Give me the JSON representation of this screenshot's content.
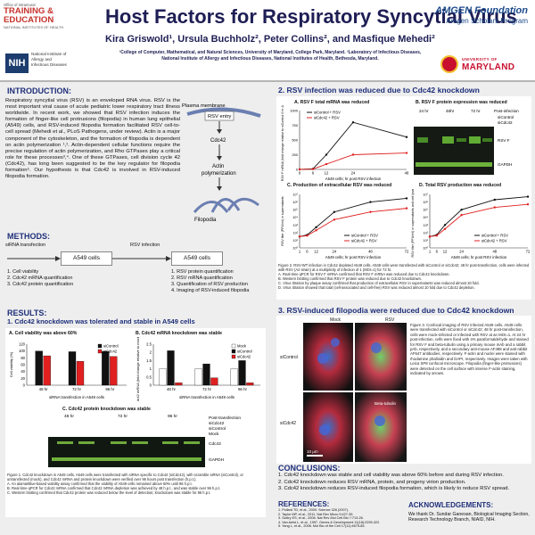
{
  "header": {
    "left_logo": {
      "small": "Office of Intramural",
      "big1": "TRAINING &",
      "big2": "EDUCATION",
      "org": "NATIONAL INSTITUTES OF HEALTH"
    },
    "title": "Host Factors for Respiratory Syncytial Virus",
    "authors": "Kira Griswold¹, Ursula Buchholz², Peter Collins², and Masfique Mehedi²",
    "affiliation1": "¹College of Computer, Mathematical, and Natural Sciences, University of Maryland, College Park, Maryland. ²Laboratory of Infectious Diseases,",
    "affiliation2": "National Institute of Allergy and Infectious Diseases, National Institutes of Health, Bethesda, Maryland.",
    "nih": {
      "mark": "NIH",
      "line1": "National Institute of",
      "line2": "Allergy and",
      "line3": "Infectious Diseases"
    },
    "amgen": {
      "line1": "AMGEN Foundation",
      "line2": "Amgen Scholars Program"
    },
    "umd": {
      "line1": "UNIVERSITY OF",
      "line2": "MARYLAND"
    }
  },
  "intro": {
    "heading": "INTRODUCTION:",
    "text": "Respiratory syncytial virus (RSV) is an enveloped RNA virus. RSV is the most important viral cause of acute pediatric lower respiratory tract illness worldwide. In recent work, we showed that RSV infection induces the formation of finger-like cell protrusions (filopodia) in human lung epithelial (A549) cells, and RSV-induced filopodia formation facilitated RSV cell-to-cell spread (Mehedi et al., PLoS Pathogens, under review). Actin is a major component of the cytoskeleton, and the formation of filopodia is dependent on actin polymerization ¹,². Actin-dependent cellular functions require the precise regulation of actin polymerization, and Rho GTPases play a critical role for these processes³,⁴. One of these GTPases, cell division cycle 42 (Cdc42), has long been suggested to be the key regulator for filopodia formation⁵. Our hypothesis is that Cdc42 is involved in RSV-induced filopodia formation.",
    "diagram": {
      "membrane": "Plasma membrane",
      "rsv_entry": "RSV entry",
      "cdc42": "Cdc42",
      "actin": "Actin",
      "polymerization": "polymerization",
      "filopodia": "Filopodia"
    }
  },
  "methods": {
    "heading": "METHODS:",
    "label_left": "siRNA transfection",
    "label_right": "RSV infection",
    "box_left": "A549 cells",
    "box_right": "A549 cells",
    "list_left": [
      "1.  Cell viability",
      "2.  Cdc42 mRNA quantification",
      "3.  Cdc42 protein quantification"
    ],
    "list_right": [
      "1.  RSV protein quantification",
      "2.  RSV mRNA quantification",
      "3.  Quantification of RSV production",
      "4.  Imaging of RSV-induced filopodia"
    ]
  },
  "results": {
    "heading": "RESULTS:",
    "sub1": "1. Cdc42 knockdown was tolerated and stable in A549 cells",
    "caption1": "Figure 1. Cdc42 knockdown in A549 cells. A549 cells were transfected with siRNA specific to Cdc42 (siCdc42), with scramble siRNA (siControl), or untransfected (mock), and Cdc42 mRNA and protein knockdown were verified over 96 hours post transfection (h.p.t.).",
    "caption1a": "A. An alamarBlue-based viability assay confirmed that the viability of A549 cells remained above 60% until 96 h.p.t.",
    "caption1b": "B. Real-time qPCR for Cdc42 mRNA confirmed that Cdc42 mRNA depletion was achieved by 48 h.p.t., and was stable over 96 h.p.t.",
    "caption1c": "C. Western blotting confirmed that Cdc42 protein was reduced below the level of detection; knockdown was stable for 96 h.p.t."
  },
  "section2": {
    "heading": "2. RSV infection was reduced due to Cdc42 knockdown",
    "caption": "Figure 2. RSV-WT infection in Cdc42 depleted A549 cells. A549 cells were transfected with siControl or siCdc42; 48 hr post-transfection, cells were infected with RSV (A2 strain) at a multiplicity of infection of 1 (MOI=1) for 72 hr.",
    "caption_a": "A. Real-time qPCR for RSV F mRNA confirmed that RSV F mRNA was reduced due to Cdc42 knockdown.",
    "caption_b": "B. Western blotting confirmed that RSV F protein was reduced due to Cdc42 knockdown.",
    "caption_c": "C. Virus titration by plaque assay confirmed that production of extracellular RSV in supernatants was reduced almost 20 fold.",
    "caption_d": "D. Virus titration showed that total (cell-associated and cell-free) RSV was reduced almost 10 fold due to Cdc42 depletion."
  },
  "section3": {
    "heading": "3. RSV-induced filopodia were reduced due to Cdc42 knockdown",
    "mock": "Mock",
    "rsv": "RSV",
    "row1": "siControl",
    "row2": "siCdc42",
    "beta_tubulin": "Beta-tubulin",
    "scale": "10 µm",
    "caption": "Figure 3. Confocal imaging of RSV infected A549 cells. A549 cells were transfected with siControl or siCdc42; 48 hr post-transfection, cells were mock-infected or infected with RSV at an MOI=1. At 24 hr post-infection, cells were fixed with 4% paraformaldehyde and stained for RSV F and beta-tubulin using a primary mouse mAb and a rabbit pAb, respectively, and a secondary anti-mouse AF488 and anti-rabbit AF647 antibodies, respectively. F-actin and nuclei were stained with rhodamine phalloidin and DAPI, respectively. Images were taken with Leica SP8 confocal microscope. Filopodia (finger-like protrusions) were detected on the cell surface with intense F-actin staining, indicated by arrows."
  },
  "conclusions": {
    "heading": "CONCLUSIONS:",
    "items": [
      "1. Cdc42 knockdown was stable and cell viability was above 60% before and during RSV infection.",
      "2. Cdc42 knockdown reduces RSV mRNA, protein, and progeny virion production.",
      "3. Cdc42 knockdown reduces RSV-induced filopodia formation, which is likely to reduce RSV spread."
    ]
  },
  "references": {
    "heading": "REFERENCES:",
    "items": [
      "1.   Pollard TD, et al., 2009. Science 326 (2007).",
      "2.   Taylor MP, et al., 2011. Nat Rev Micro 9:427-39.",
      "3.   Guttry ES, et al., 2008. Nat Rev Mol Cell Bio 7:713-26.",
      "4.   Van Aelst L, et al., 1997. Genes & Development 11(18):2295-322.",
      "5.   Yang L, et al., 2006. Mol Bio of the Cell 17(11):4675-85."
    ]
  },
  "ack": {
    "heading": "ACKNOWLEDGEMENTS:",
    "text": "We thank Dr. Sundar Ganesan, Biological Imaging Section, Research Technology Branch, NIAID, NIH."
  },
  "fig1a": {
    "title": "A. Cell viability was above 60%",
    "ylabel": "Cell viability (%)",
    "xlabel": "siRNA transfection in A549 cells",
    "legend": [
      "siControl",
      "siCdc42"
    ],
    "ticks": [
      "0",
      "20",
      "40",
      "60",
      "80",
      "100",
      "120"
    ],
    "chart_data": {
      "type": "bar",
      "categories": [
        "48 hr",
        "72 hr",
        "96 hr"
      ],
      "series": [
        {
          "name": "siControl",
          "values": [
            100,
            98,
            99
          ]
        },
        {
          "name": "siCdc42",
          "values": [
            86,
            70,
            84
          ]
        }
      ],
      "ylim": [
        0,
        120
      ]
    }
  },
  "fig1b": {
    "title": "B. Cdc42 mRNA knockdown was stable",
    "ylabel": "Cdc42 mRNA (fold change relative to mock, ΔΔCt)",
    "xlabel": "siRNA transfection in A549 cells",
    "legend": [
      "Mock",
      "siControl",
      "siCdc42"
    ],
    "ticks": [
      "0",
      "0.5",
      "1",
      "1.5",
      "2",
      "2.5"
    ],
    "chart_data": {
      "type": "bar",
      "categories": [
        "48 hr",
        "72 hr",
        "96 hr"
      ],
      "series": [
        {
          "name": "Mock",
          "values": [
            1.0,
            1.0,
            1.0
          ]
        },
        {
          "name": "siControl",
          "values": [
            2.1,
            1.3,
            1.5
          ]
        },
        {
          "name": "siCdc42",
          "values": [
            0.15,
            0.45,
            0.15
          ]
        }
      ],
      "ylim": [
        0,
        2.5
      ]
    }
  },
  "fig1c": {
    "title": "C. Cdc42 protein knockdown was stable",
    "times": [
      "48 hr",
      "72 hr",
      "96 hr"
    ],
    "rowlabels": [
      "siCdc42",
      "siControl",
      "Mock"
    ],
    "marks": [
      "Post-transfection",
      "+",
      "-",
      "-",
      "+",
      "-",
      "-",
      "+",
      "-",
      "-"
    ],
    "bands": [
      "Cdc42",
      "GAPDH"
    ]
  },
  "fig2a": {
    "title": "A. RSV F total mRNA was reduced",
    "legend": [
      "siControl + RSV",
      "siCdc42 + RSV"
    ],
    "ylabel": "RSV F mRNA (fold change relative to siControl 0 hr ΔΔCt)",
    "xlabel": "A549 cells; hr post RSV infection",
    "chart_data": {
      "type": "line",
      "x": [
        0,
        6,
        12,
        24,
        48
      ],
      "series": [
        {
          "name": "siControl + RSV",
          "values": [
            0,
            10,
            250,
            800,
            550
          ]
        },
        {
          "name": "siCdc42 + RSV",
          "values": [
            0,
            5,
            90,
            250,
            280
          ]
        }
      ],
      "ylim": [
        0,
        1000
      ]
    },
    "ticks": [
      "0",
      "250",
      "500",
      "750",
      "1000"
    ],
    "xticks": [
      "0",
      "6",
      "12",
      "24",
      "48"
    ]
  },
  "fig2b": {
    "title": "B. RSV F protein expression was reduced",
    "times": [
      "24 hr",
      "48hr",
      "72 hr"
    ],
    "post": "Post-infection",
    "rows": [
      "siControl",
      "siCdc42"
    ],
    "bands": [
      "RSV F",
      "GAPDH"
    ]
  },
  "fig2c": {
    "title": "C. Production of extracellular RSV was reduced",
    "ylabel": "RSV titer (PFU/ml) in supernatants",
    "xlabel": "A549 cells; hr post RSV infection",
    "legend": [
      "siControl + RSV",
      "siCdc42 + RSV"
    ],
    "chart_data": {
      "type": "line",
      "x": [
        1,
        6,
        12,
        24,
        48,
        72
      ],
      "series": [
        {
          "name": "siControl + RSV",
          "values": [
            30,
            50,
            500,
            50000,
            1000000,
            3000000
          ]
        },
        {
          "name": "siCdc42 + RSV",
          "values": [
            30,
            40,
            200,
            5000,
            50000,
            150000
          ]
        }
      ],
      "yscale": "log",
      "ylim": [
        1,
        10000000
      ]
    },
    "xticks": [
      "1",
      "6",
      "12",
      "24",
      "48",
      "72"
    ]
  },
  "fig2d": {
    "title": "D. Total RSV production was reduced",
    "ylabel": "RSV titer (PFU/ml) in supernatants and cell lysates",
    "xlabel": "A549 cells; hr post RSV infection",
    "legend": [
      "siControl + RSV",
      "siCdc42 + RSV"
    ],
    "chart_data": {
      "type": "line",
      "x": [
        1,
        6,
        12,
        24,
        48,
        72
      ],
      "series": [
        {
          "name": "siControl + RSV",
          "values": [
            30,
            50,
            1000,
            100000,
            2000000,
            5000000
          ]
        },
        {
          "name": "siCdc42 + RSV",
          "values": [
            30,
            40,
            300,
            20000,
            200000,
            500000
          ]
        }
      ],
      "yscale": "log",
      "ylim": [
        1,
        10000000
      ]
    },
    "xticks": [
      "1",
      "6",
      "12",
      "24",
      "48",
      "72"
    ]
  }
}
